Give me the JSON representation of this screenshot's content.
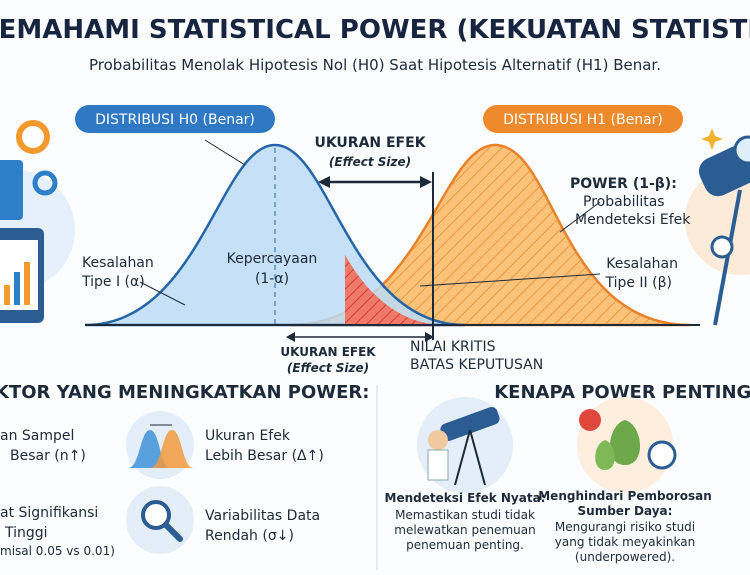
{
  "header": {
    "title": "MEMAHAMI STATISTICAL POWER (KEKUATAN STATISTIK",
    "subtitle": "Probabilitas Menolak Hipotesis Nol (H0) Saat Hipotesis Alternatif (H1) Benar."
  },
  "diagram": {
    "h0_label": "DISTRIBUSI H0 (Benar)",
    "h1_label": "DISTRIBUSI H1 (Benar)",
    "effect_top": [
      "UKURAN EFEK",
      "(Effect Size)"
    ],
    "power": [
      "POWER (1-β):",
      "Probabilitas",
      "Mendeteksi Efek"
    ],
    "type1": [
      "Kesalahan",
      "Tipe I (α)"
    ],
    "confidence": [
      "Kepercayaan",
      "(1-α)"
    ],
    "type2": [
      "Kesalahan",
      "Tipe II (β)"
    ],
    "effect_bottom": [
      "UKURAN EFEK",
      "(Effect Size)"
    ],
    "critical": [
      "NILAI KRITIS",
      "BATAS KEPUTUSAN"
    ]
  },
  "factors": {
    "title": "KTOR YANG MENINGKATKAN POWER:",
    "items": [
      [
        "an Sampel",
        "Besar (n↑)"
      ],
      [
        "Ukuran Efek",
        "Lebih Besar (Δ↑)"
      ],
      [
        "at Signifikansi",
        "Tinggi",
        "misal 0.05 vs 0.01)"
      ],
      [
        "Variabilitas Data",
        "Rendah (σ↓)"
      ]
    ]
  },
  "why": {
    "title": "KENAPA POWER PENTING?",
    "items": [
      {
        "heading": [
          "Mendeteksi Efek Nyata:"
        ],
        "body": [
          "Memastikan studi tidak",
          "melewatkan penemuan",
          "penemuan penting."
        ]
      },
      {
        "heading": [
          "Menghindari Pemborosan",
          "Sumber Daya:"
        ],
        "body": [
          "Mengurangi risiko studi",
          "yang tidak meyakinkan",
          "(underpowered)."
        ]
      }
    ]
  }
}
